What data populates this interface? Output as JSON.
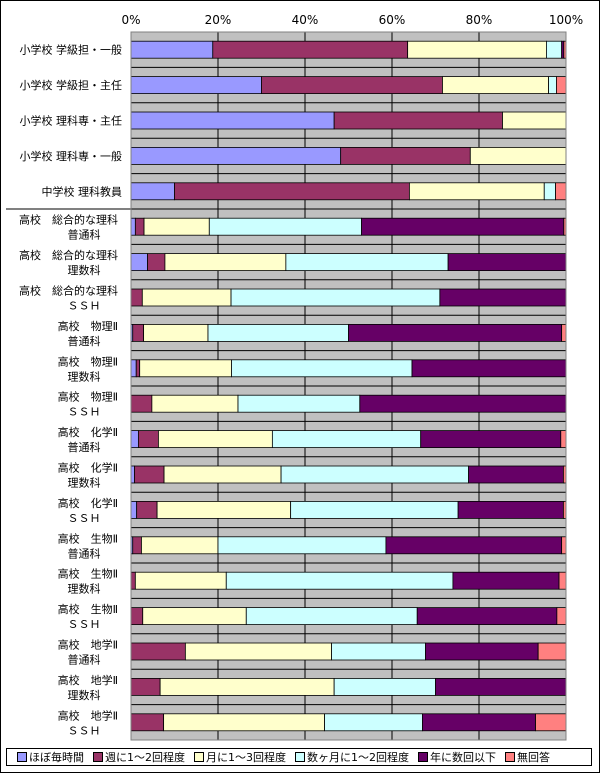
{
  "chart_data": {
    "type": "bar",
    "orientation": "horizontal",
    "stacked": "percent",
    "title": "",
    "xlabel": "",
    "ylabel": "",
    "xlim": [
      0,
      100
    ],
    "x_tick_labels": [
      "0%",
      "20%",
      "40%",
      "60%",
      "80%",
      "100%"
    ],
    "grid": true,
    "legend_position": "bottom",
    "categories": [
      [
        "小学校 学級担・一般"
      ],
      [
        "小学校 学級担・主任"
      ],
      [
        "小学校 理科専・主任"
      ],
      [
        "小学校 理科専・一般"
      ],
      [
        "中学校 理科教員"
      ],
      [
        "高校　総合的な理科",
        "普通科"
      ],
      [
        "高校　総合的な理科",
        "理数科"
      ],
      [
        "高校　総合的な理科",
        "ＳＳＨ"
      ],
      [
        "高校　物理Ⅱ",
        "普通科"
      ],
      [
        "高校　物理Ⅱ",
        "理数科"
      ],
      [
        "高校　物理Ⅱ",
        "ＳＳＨ"
      ],
      [
        "高校　化学Ⅱ",
        "普通科"
      ],
      [
        "高校　化学Ⅱ",
        "理数科"
      ],
      [
        "高校　化学Ⅱ",
        "ＳＳＨ"
      ],
      [
        "高校　生物Ⅱ",
        "普通科"
      ],
      [
        "高校　生物Ⅱ",
        "理数科"
      ],
      [
        "高校　生物Ⅱ",
        "ＳＳＨ"
      ],
      [
        "高校　地学Ⅱ",
        "普通科"
      ],
      [
        "高校　地学Ⅱ",
        "理数科"
      ],
      [
        "高校　地学Ⅱ",
        "ＳＳＨ"
      ]
    ],
    "series": [
      {
        "name": "ほぼ毎時間",
        "color": "#9999FF",
        "values": [
          18.8,
          30.0,
          46.7,
          48.2,
          10.0,
          1.0,
          3.8,
          0.0,
          0.4,
          1.2,
          0.0,
          1.7,
          0.8,
          1.3,
          0.4,
          0.0,
          0.0,
          0.0,
          0.0,
          0.0
        ]
      },
      {
        "name": "週に1～2回程度",
        "color": "#993366",
        "values": [
          44.8,
          41.6,
          38.7,
          29.8,
          54.0,
          2.0,
          4.0,
          2.6,
          2.5,
          0.8,
          4.8,
          4.6,
          6.8,
          4.7,
          2.0,
          1.0,
          2.7,
          12.5,
          6.7,
          7.5
        ]
      },
      {
        "name": "月に1～3回程度",
        "color": "#FFFFCC",
        "values": [
          31.9,
          24.4,
          14.6,
          22.0,
          31.0,
          15.0,
          27.8,
          20.4,
          14.8,
          21.1,
          19.8,
          26.2,
          26.9,
          30.7,
          17.6,
          20.9,
          23.8,
          33.6,
          40.0,
          37.0
        ]
      },
      {
        "name": "数ヶ月に1～2回程度",
        "color": "#CCFFFF",
        "values": [
          3.5,
          1.8,
          0.0,
          0.0,
          2.6,
          35.0,
          37.3,
          48.0,
          32.3,
          41.5,
          28.0,
          34.1,
          43.1,
          38.5,
          38.6,
          52.1,
          39.3,
          21.6,
          23.3,
          22.5
        ]
      },
      {
        "name": "年に数回以下",
        "color": "#660066",
        "values": [
          0.5,
          0.0,
          0.0,
          0.0,
          0.0,
          46.5,
          27.1,
          29.0,
          49.0,
          35.4,
          47.4,
          32.2,
          21.8,
          24.2,
          40.4,
          24.4,
          32.1,
          25.9,
          30.0,
          26.0
        ]
      },
      {
        "name": "無回答",
        "color": "#FF8080",
        "values": [
          0.5,
          2.2,
          0.0,
          0.0,
          2.4,
          0.5,
          0.0,
          0.0,
          1.0,
          0.0,
          0.0,
          1.2,
          0.6,
          0.6,
          1.0,
          1.6,
          2.1,
          6.4,
          0.0,
          7.0
        ]
      }
    ]
  }
}
